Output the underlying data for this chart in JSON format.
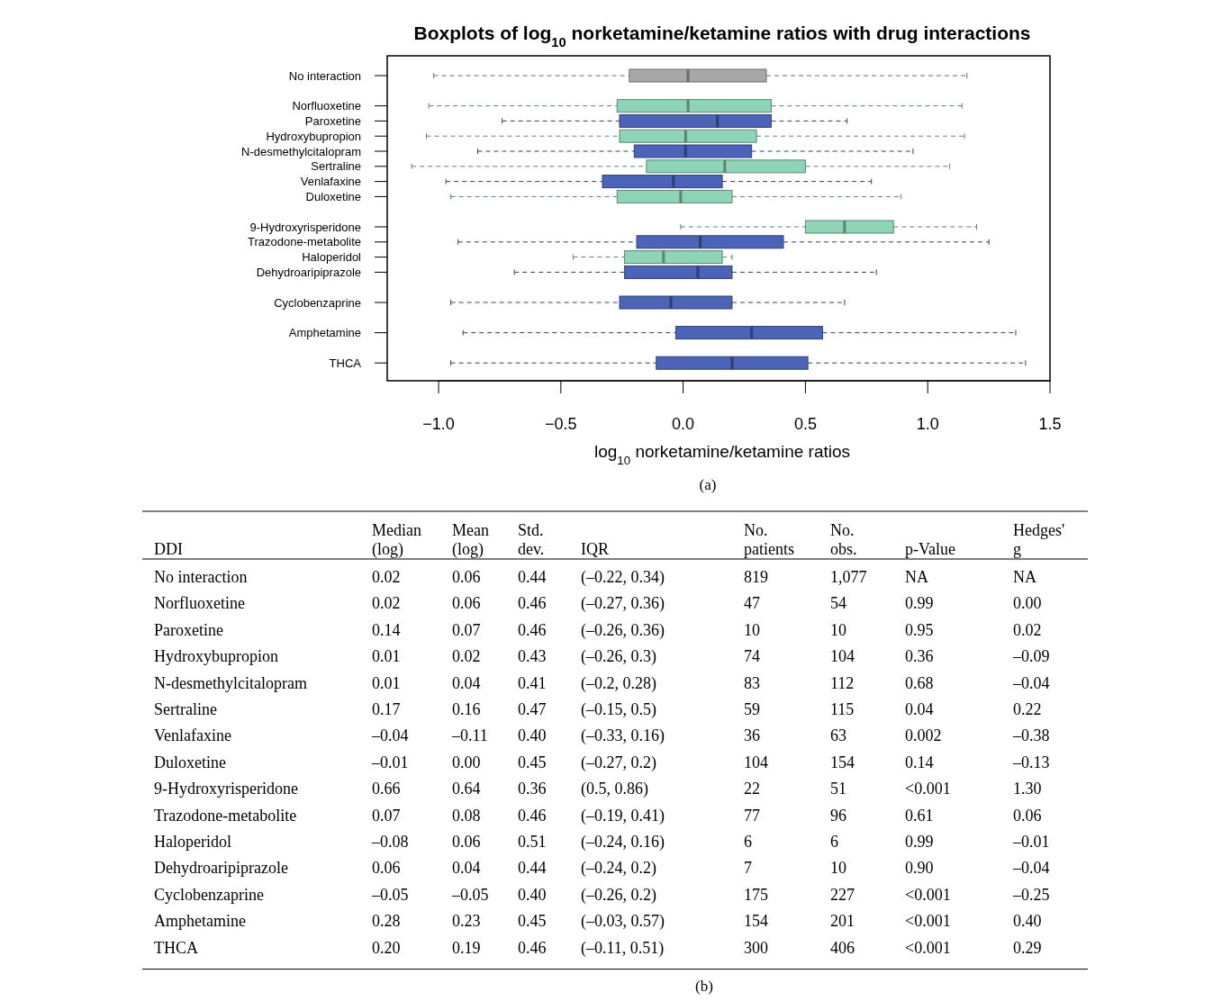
{
  "chart_data": [
    {
      "type": "box",
      "orientation": "horizontal",
      "title": "Boxplots of log$_{10}$ norketamine/ketamine ratios with drug interactions",
      "xlabel": "log$_{10}$ norketamine/ketamine ratios",
      "annotations": [
        "(a)"
      ],
      "categories": [
        "No interaction",
        null,
        "Norfluoxetine",
        "Paroxetine",
        "Hydroxybupropion",
        "N-desmethylcitalopram",
        "Sertraline",
        "Venlafaxine",
        "Duloxetine",
        null,
        "9-Hydroxyrisperidone",
        "Trazodone-metabolite",
        "Haloperidol",
        "Dehydroaripiprazole",
        null,
        "Cyclobenzaprine",
        null,
        "Amphetamine",
        null,
        "THCA"
      ],
      "boxes": [
        {
          "low": -1.02,
          "q1": -0.22,
          "median": 0.02,
          "q3": 0.34,
          "high": 1.16
        },
        null,
        {
          "low": -1.04,
          "q1": -0.27,
          "median": 0.02,
          "q3": 0.36,
          "high": 1.14
        },
        {
          "low": -0.74,
          "q1": -0.26,
          "median": 0.14,
          "q3": 0.36,
          "high": 0.67
        },
        {
          "low": -1.05,
          "q1": -0.26,
          "median": 0.01,
          "q3": 0.3,
          "high": 1.15
        },
        {
          "low": -0.84,
          "q1": -0.2,
          "median": 0.01,
          "q3": 0.28,
          "high": 0.94
        },
        {
          "low": -1.11,
          "q1": -0.15,
          "median": 0.17,
          "q3": 0.5,
          "high": 1.09
        },
        {
          "low": -0.97,
          "q1": -0.33,
          "median": -0.04,
          "q3": 0.16,
          "high": 0.77
        },
        {
          "low": -0.95,
          "q1": -0.27,
          "median": -0.01,
          "q3": 0.2,
          "high": 0.89
        },
        null,
        {
          "low": -0.01,
          "q1": 0.5,
          "median": 0.66,
          "q3": 0.86,
          "high": 1.2
        },
        {
          "low": -0.92,
          "q1": -0.19,
          "median": 0.07,
          "q3": 0.41,
          "high": 1.25
        },
        {
          "low": -0.45,
          "q1": -0.24,
          "median": -0.08,
          "q3": 0.16,
          "high": 0.2
        },
        {
          "low": -0.69,
          "q1": -0.24,
          "median": 0.06,
          "q3": 0.2,
          "high": 0.79
        },
        null,
        {
          "low": -0.95,
          "q1": -0.26,
          "median": -0.05,
          "q3": 0.2,
          "high": 0.66
        },
        null,
        {
          "low": -0.9,
          "q1": -0.03,
          "median": 0.28,
          "q3": 0.57,
          "high": 1.36
        },
        null,
        {
          "low": -0.95,
          "q1": -0.11,
          "median": 0.2,
          "q3": 0.51,
          "high": 1.4
        }
      ],
      "colors": [
        "#a8a8a8",
        null,
        "#8ed4b6",
        "#4b64b8",
        "#8ed4b6",
        "#4b64b8",
        "#8ed4b6",
        "#4b64b8",
        "#8ed4b6",
        null,
        "#8ed4b6",
        "#4b64b8",
        "#8ed4b6",
        "#4b64b8",
        null,
        "#4b64b8",
        null,
        "#4b64b8",
        null,
        "#4b64b8"
      ],
      "xlim": [
        -1.21,
        1.5
      ],
      "xticks": [
        {
          "value": -1,
          "label": "−1.0"
        },
        {
          "value": -0.5,
          "label": "−0.5"
        },
        {
          "value": 0,
          "label": "0.0"
        },
        {
          "value": 0.5,
          "label": "0.5"
        },
        {
          "value": 1,
          "label": "1.0"
        },
        {
          "value": 1.5,
          "label": "1.5"
        }
      ]
    },
    {
      "type": "other",
      "title": "(b)",
      "categories": [
        "DDI",
        "Median\n(log)",
        "Mean\n(log)",
        "Std.\ndev.",
        "IQR",
        "No.\npatients",
        "No.\nobs.",
        "p-Value",
        "Hedges'\ng"
      ],
      "annotations": [
        "No interaction",
        "0.02",
        "0.06",
        "0.44",
        "(–0.22, 0.34)",
        "819",
        "1,077",
        "NA",
        "NA",
        "Norfluoxetine",
        "0.02",
        "0.06",
        "0.46",
        "(–0.27, 0.36)",
        "47",
        "54",
        "0.99",
        "0.00",
        "Paroxetine",
        "0.14",
        "0.07",
        "0.46",
        "(–0.26, 0.36)",
        "10",
        "10",
        "0.95",
        "0.02",
        "Hydroxybupropion",
        "0.01",
        "0.02",
        "0.43",
        "(–0.26, 0.3)",
        "74",
        "104",
        "0.36",
        "–0.09",
        "N-desmethylcitalopram",
        "0.01",
        "0.04",
        "0.41",
        "(–0.2, 0.28)",
        "83",
        "112",
        "0.68",
        "–0.04",
        "Sertraline",
        "0.17",
        "0.16",
        "0.47",
        "(–0.15, 0.5)",
        "59",
        "115",
        "0.04",
        "0.22",
        "Venlafaxine",
        "–0.04",
        "–0.11",
        "0.40",
        "(–0.33, 0.16)",
        "36",
        "63",
        "0.002",
        "–0.38",
        "Duloxetine",
        "–0.01",
        "0.00",
        "0.45",
        "(–0.27, 0.2)",
        "104",
        "154",
        "0.14",
        "–0.13",
        "9-Hydroxyrisperidone",
        "0.66",
        "0.64",
        "0.36",
        "(0.5, 0.86)",
        "22",
        "51",
        "<0.001",
        "1.30",
        "Trazodone-metabolite",
        "0.07",
        "0.08",
        "0.46",
        "(–0.19, 0.41)",
        "77",
        "96",
        "0.61",
        "0.06",
        "Haloperidol",
        "–0.08",
        "0.06",
        "0.51",
        "(–0.24, 0.16)",
        "6",
        "6",
        "0.99",
        "–0.01",
        "Dehydroaripiprazole",
        "0.06",
        "0.04",
        "0.44",
        "(–0.24, 0.2)",
        "7",
        "10",
        "0.90",
        "–0.04",
        "Cyclobenzaprine",
        "–0.05",
        "–0.05",
        "0.40",
        "(–0.26, 0.2)",
        "175",
        "227",
        "<0.001",
        "–0.25",
        "Amphetamine",
        "0.28",
        "0.23",
        "0.45",
        "(–0.03, 0.57)",
        "154",
        "201",
        "<0.001",
        "0.40",
        "THCA",
        "0.20",
        "0.19",
        "0.46",
        "(–0.11, 0.51)",
        "300",
        "406",
        "<0.001",
        "0.29"
      ]
    }
  ]
}
